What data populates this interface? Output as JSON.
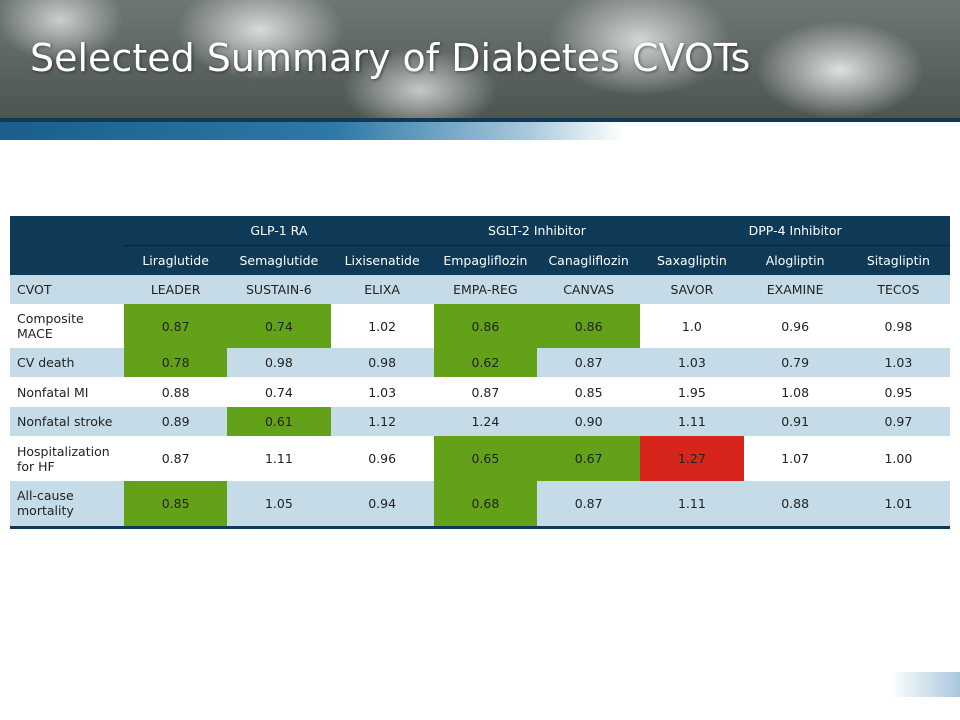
{
  "title": "Selected Summary of Diabetes CVOTs",
  "colors": {
    "header": "#0e3a57",
    "alt_row": "#c5dbe7",
    "significant_benefit": "#63a119",
    "significant_harm": "#d8251b"
  },
  "table": {
    "groups": [
      {
        "label": "GLP-1 RA",
        "span": 3
      },
      {
        "label": "SGLT-2 Inhibitor",
        "span": 2
      },
      {
        "label": "DPP-4 Inhibitor",
        "span": 3
      }
    ],
    "drugs": [
      "Liraglutide",
      "Semaglutide",
      "Lixisenatide",
      "Empagliflozin",
      "Canagliflozin",
      "Saxagliptin",
      "Alogliptin",
      "Sitagliptin"
    ],
    "cvot_row": {
      "label": "CVOT",
      "values": [
        "LEADER",
        "SUSTAIN-6",
        "ELIXA",
        "EMPA-REG",
        "CANVAS",
        "SAVOR",
        "EXAMINE",
        "TECOS"
      ]
    },
    "rows": [
      {
        "label": "Composite MACE",
        "values": [
          "0.87",
          "0.74",
          "1.02",
          "0.86",
          "0.86",
          "1.0",
          "0.96",
          "0.98"
        ],
        "highlight": [
          "g",
          "g",
          "",
          "g",
          "g",
          "",
          "",
          ""
        ]
      },
      {
        "label": "CV death",
        "values": [
          "0.78",
          "0.98",
          "0.98",
          "0.62",
          "0.87",
          "1.03",
          "0.79",
          "1.03"
        ],
        "highlight": [
          "g",
          "",
          "",
          "g",
          "",
          "",
          "",
          ""
        ]
      },
      {
        "label": "Nonfatal MI",
        "values": [
          "0.88",
          "0.74",
          "1.03",
          "0.87",
          "0.85",
          "1.95",
          "1.08",
          "0.95"
        ],
        "highlight": [
          "",
          "",
          "",
          "",
          "",
          "",
          "",
          ""
        ]
      },
      {
        "label": "Nonfatal stroke",
        "values": [
          "0.89",
          "0.61",
          "1.12",
          "1.24",
          "0.90",
          "1.11",
          "0.91",
          "0.97"
        ],
        "highlight": [
          "",
          "g",
          "",
          "",
          "",
          "",
          "",
          ""
        ]
      },
      {
        "label": "Hospitalization for HF",
        "values": [
          "0.87",
          "1.11",
          "0.96",
          "0.65",
          "0.67",
          "1.27",
          "1.07",
          "1.00"
        ],
        "highlight": [
          "",
          "",
          "",
          "g",
          "g",
          "r",
          "",
          ""
        ]
      },
      {
        "label": "All-cause mortality",
        "values": [
          "0.85",
          "1.05",
          "0.94",
          "0.68",
          "0.87",
          "1.11",
          "0.88",
          "1.01"
        ],
        "highlight": [
          "g",
          "",
          "",
          "g",
          "",
          "",
          "",
          ""
        ]
      }
    ]
  }
}
